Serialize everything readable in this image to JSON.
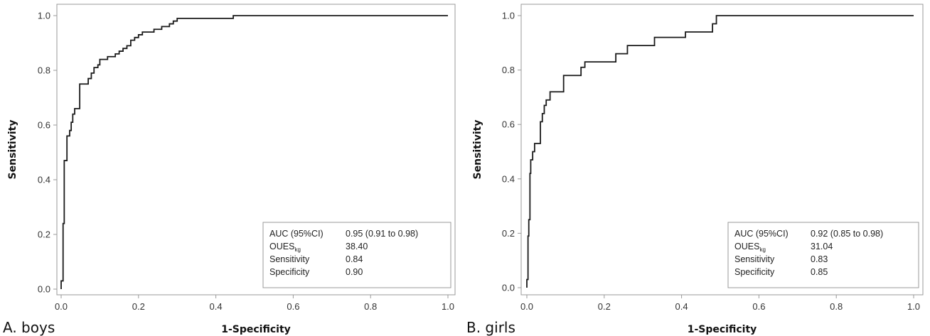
{
  "chart_data": [
    {
      "type": "line",
      "panel_label": "A. boys",
      "xlabel": "1-Specificity",
      "ylabel": "Sensitivity",
      "xlim": [
        0,
        1
      ],
      "ylim": [
        0,
        1
      ],
      "xticks": [
        "0.0",
        "0.2",
        "0.4",
        "0.6",
        "0.8",
        "1.0"
      ],
      "yticks": [
        "0.0",
        "0.2",
        "0.4",
        "0.6",
        "0.8",
        "1.0"
      ],
      "grid": false,
      "legend_placement": "bottom-right",
      "stats": [
        {
          "label": "AUC (95%CI)",
          "label_sub": "",
          "value": "0.95 (0.91 to 0.98)"
        },
        {
          "label": "OUES",
          "label_sub": "kg",
          "value": "38.40"
        },
        {
          "label": "Sensitivity",
          "label_sub": "",
          "value": "0.84"
        },
        {
          "label": "Specificity",
          "label_sub": "",
          "value": "0.90"
        }
      ],
      "series": [
        {
          "points": [
            [
              0,
              0
            ],
            [
              0,
              0.03
            ],
            [
              0.005,
              0.03
            ],
            [
              0.005,
              0.24
            ],
            [
              0.008,
              0.24
            ],
            [
              0.008,
              0.47
            ],
            [
              0.015,
              0.47
            ],
            [
              0.015,
              0.56
            ],
            [
              0.022,
              0.56
            ],
            [
              0.022,
              0.58
            ],
            [
              0.026,
              0.58
            ],
            [
              0.026,
              0.61
            ],
            [
              0.03,
              0.61
            ],
            [
              0.03,
              0.64
            ],
            [
              0.035,
              0.64
            ],
            [
              0.035,
              0.66
            ],
            [
              0.048,
              0.66
            ],
            [
              0.048,
              0.75
            ],
            [
              0.07,
              0.75
            ],
            [
              0.07,
              0.77
            ],
            [
              0.078,
              0.77
            ],
            [
              0.078,
              0.79
            ],
            [
              0.085,
              0.79
            ],
            [
              0.085,
              0.81
            ],
            [
              0.095,
              0.81
            ],
            [
              0.095,
              0.82
            ],
            [
              0.1,
              0.82
            ],
            [
              0.1,
              0.84
            ],
            [
              0.12,
              0.84
            ],
            [
              0.12,
              0.85
            ],
            [
              0.14,
              0.85
            ],
            [
              0.14,
              0.86
            ],
            [
              0.15,
              0.86
            ],
            [
              0.15,
              0.87
            ],
            [
              0.16,
              0.87
            ],
            [
              0.16,
              0.88
            ],
            [
              0.17,
              0.88
            ],
            [
              0.17,
              0.89
            ],
            [
              0.18,
              0.89
            ],
            [
              0.18,
              0.91
            ],
            [
              0.19,
              0.91
            ],
            [
              0.19,
              0.92
            ],
            [
              0.2,
              0.92
            ],
            [
              0.2,
              0.93
            ],
            [
              0.21,
              0.93
            ],
            [
              0.21,
              0.94
            ],
            [
              0.24,
              0.94
            ],
            [
              0.24,
              0.95
            ],
            [
              0.26,
              0.95
            ],
            [
              0.26,
              0.96
            ],
            [
              0.28,
              0.96
            ],
            [
              0.28,
              0.97
            ],
            [
              0.29,
              0.97
            ],
            [
              0.29,
              0.98
            ],
            [
              0.3,
              0.98
            ],
            [
              0.3,
              0.99
            ],
            [
              0.445,
              0.99
            ],
            [
              0.445,
              1.0
            ],
            [
              1.0,
              1.0
            ]
          ]
        }
      ]
    },
    {
      "type": "line",
      "panel_label": "B. girls",
      "xlabel": "1-Specificity",
      "ylabel": "Sensitivity",
      "xlim": [
        0,
        1
      ],
      "ylim": [
        0,
        1
      ],
      "xticks": [
        "0.0",
        "0.2",
        "0.4",
        "0.6",
        "0.8",
        "1.0"
      ],
      "yticks": [
        "0.0",
        "0.2",
        "0.4",
        "0.6",
        "0.8",
        "1.0"
      ],
      "grid": false,
      "legend_placement": "bottom-right",
      "stats": [
        {
          "label": "AUC (95%CI)",
          "label_sub": "",
          "value": "0.92 (0.85 to 0.98)"
        },
        {
          "label": "OUES",
          "label_sub": "kg",
          "value": "31.04"
        },
        {
          "label": "Sensitivity",
          "label_sub": "",
          "value": "0.83"
        },
        {
          "label": "Specificity",
          "label_sub": "",
          "value": "0.85"
        }
      ],
      "series": [
        {
          "points": [
            [
              0,
              0
            ],
            [
              0,
              0.03
            ],
            [
              0.003,
              0.03
            ],
            [
              0.003,
              0.19
            ],
            [
              0.005,
              0.19
            ],
            [
              0.005,
              0.25
            ],
            [
              0.008,
              0.25
            ],
            [
              0.008,
              0.42
            ],
            [
              0.01,
              0.42
            ],
            [
              0.01,
              0.47
            ],
            [
              0.015,
              0.47
            ],
            [
              0.015,
              0.5
            ],
            [
              0.02,
              0.5
            ],
            [
              0.02,
              0.53
            ],
            [
              0.035,
              0.53
            ],
            [
              0.035,
              0.61
            ],
            [
              0.04,
              0.61
            ],
            [
              0.04,
              0.64
            ],
            [
              0.045,
              0.64
            ],
            [
              0.045,
              0.67
            ],
            [
              0.05,
              0.67
            ],
            [
              0.05,
              0.69
            ],
            [
              0.06,
              0.69
            ],
            [
              0.06,
              0.72
            ],
            [
              0.095,
              0.72
            ],
            [
              0.095,
              0.78
            ],
            [
              0.14,
              0.78
            ],
            [
              0.14,
              0.81
            ],
            [
              0.15,
              0.81
            ],
            [
              0.15,
              0.83
            ],
            [
              0.23,
              0.83
            ],
            [
              0.23,
              0.86
            ],
            [
              0.26,
              0.86
            ],
            [
              0.26,
              0.89
            ],
            [
              0.33,
              0.89
            ],
            [
              0.33,
              0.92
            ],
            [
              0.41,
              0.92
            ],
            [
              0.41,
              0.94
            ],
            [
              0.48,
              0.94
            ],
            [
              0.48,
              0.97
            ],
            [
              0.49,
              0.97
            ],
            [
              0.49,
              1.0
            ],
            [
              1.0,
              1.0
            ]
          ]
        }
      ]
    }
  ]
}
